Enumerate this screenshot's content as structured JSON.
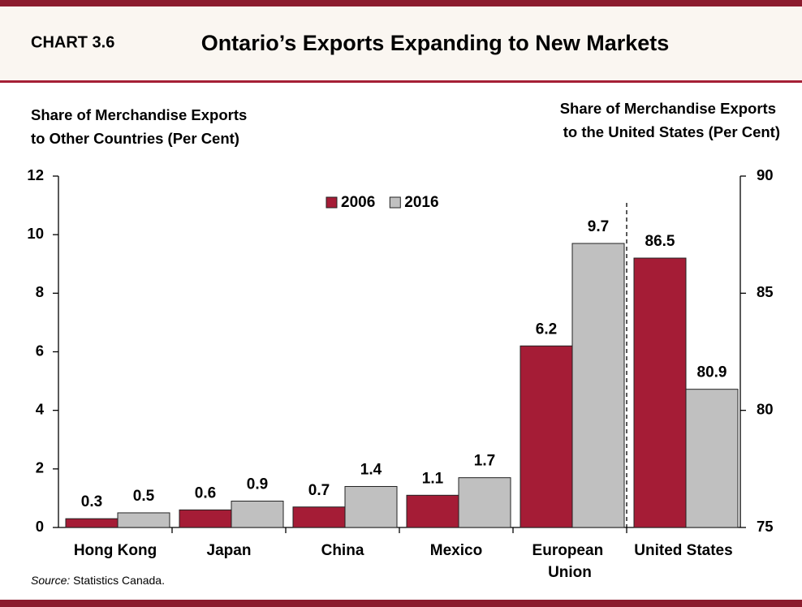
{
  "chart_data": {
    "type": "bar",
    "chart_number": "CHART 3.6",
    "title": "Ontario’s Exports Expanding to New Markets",
    "ylabel": [
      "Share of Merchandise Exports",
      "to Other Countries (Per Cent)"
    ],
    "y2label": [
      "Share of Merchandise Exports",
      "to the United States (Per Cent)"
    ],
    "source_label": "Source:",
    "source": "Statistics  Canada.",
    "categories": [
      "Hong Kong",
      "Japan",
      "China",
      "Mexico",
      "European Union",
      "United States"
    ],
    "axis_by_category": [
      "y",
      "y",
      "y",
      "y",
      "y",
      "y2"
    ],
    "series": [
      {
        "name": "2006",
        "color": "#a51c36",
        "values": [
          0.3,
          0.6,
          0.7,
          1.1,
          6.2,
          86.5
        ]
      },
      {
        "name": "2016",
        "color": "#c0c0c0",
        "values": [
          0.5,
          0.9,
          1.4,
          1.7,
          9.7,
          80.9
        ]
      }
    ],
    "ylim": [
      0,
      12
    ],
    "yticks": [
      0,
      2,
      4,
      6,
      8,
      10,
      12
    ],
    "y2lim": [
      75,
      90
    ],
    "y2ticks": [
      75,
      80,
      85,
      90
    ],
    "legend": "top"
  }
}
